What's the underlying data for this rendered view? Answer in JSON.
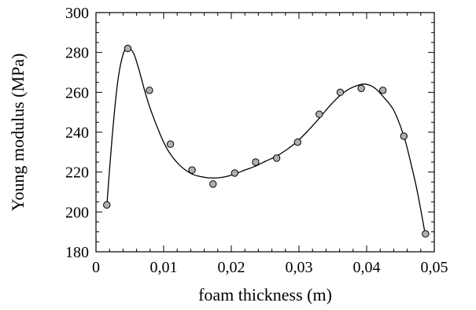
{
  "chart_data": {
    "type": "scatter",
    "title": "",
    "xlabel": "foam thickness (m)",
    "ylabel": "Young modulus  (MPa)",
    "xlim": [
      0,
      0.05
    ],
    "ylim": [
      180,
      300
    ],
    "grid": false,
    "legend": "none",
    "x_ticks": [
      0,
      0.01,
      0.02,
      0.03,
      0.04,
      0.05
    ],
    "x_tick_labels": [
      "0",
      "0,01",
      "0,02",
      "0,03",
      "0,04",
      "0,05"
    ],
    "y_ticks": [
      180,
      200,
      220,
      240,
      260,
      280,
      300
    ],
    "y_tick_labels": [
      "180",
      "200",
      "220",
      "240",
      "260",
      "280",
      "300"
    ],
    "series": [
      {
        "kind": "points",
        "marker_color": "#b0b0b0",
        "x": [
          0.0016,
          0.0047,
          0.0079,
          0.011,
          0.0142,
          0.0173,
          0.0205,
          0.0236,
          0.0267,
          0.0298,
          0.033,
          0.0361,
          0.0392,
          0.0424,
          0.0455,
          0.0487
        ],
        "y": [
          203.5,
          282,
          261,
          234,
          221,
          214,
          219.5,
          225,
          227,
          235,
          249,
          260,
          262,
          261,
          238,
          189
        ]
      },
      {
        "kind": "fit-curve",
        "line_color": "#000000",
        "x": [
          0.0016,
          0.0024,
          0.0032,
          0.004,
          0.0047,
          0.0055,
          0.0063,
          0.0071,
          0.0079,
          0.009,
          0.01,
          0.011,
          0.0125,
          0.0142,
          0.0158,
          0.0173,
          0.0189,
          0.0205,
          0.022,
          0.0236,
          0.0251,
          0.0267,
          0.0283,
          0.0298,
          0.0314,
          0.033,
          0.0345,
          0.0361,
          0.0376,
          0.0392,
          0.04,
          0.0408,
          0.0416,
          0.0424,
          0.044,
          0.0455,
          0.0465,
          0.0475,
          0.0487
        ],
        "y": [
          203,
          238,
          265,
          279,
          282,
          280,
          272,
          262,
          253,
          243,
          235,
          229,
          223,
          219,
          217.5,
          217,
          217.5,
          219,
          221,
          223,
          225.5,
          228,
          231.5,
          235.5,
          241,
          247,
          253,
          258.5,
          262,
          264,
          264,
          263,
          261,
          258,
          251,
          238,
          225,
          210,
          188
        ]
      }
    ]
  }
}
